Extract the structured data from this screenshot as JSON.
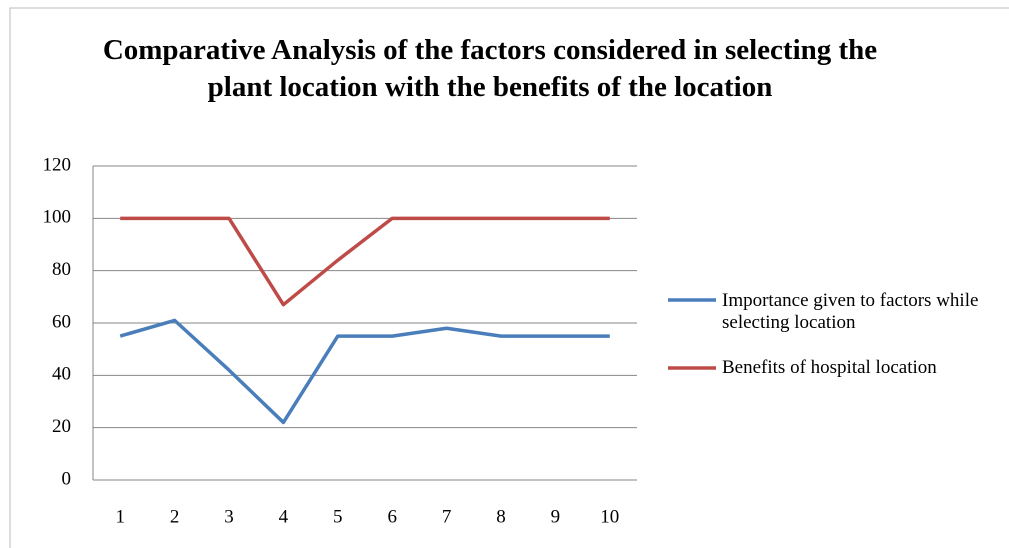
{
  "chart_data": {
    "type": "line",
    "title": "Comparative Analysis of the factors considered in selecting the plant location with the benefits of the location",
    "categories": [
      "1",
      "2",
      "3",
      "4",
      "5",
      "6",
      "7",
      "8",
      "9",
      "10"
    ],
    "series": [
      {
        "name": "Importance given to factors while  selecting location",
        "color": "#4a7ebb",
        "values": [
          55,
          61,
          42,
          22,
          55,
          55,
          58,
          55,
          55,
          55
        ]
      },
      {
        "name": "Benefits of hospital location",
        "color": "#be4b48",
        "values": [
          100,
          100,
          100,
          67,
          84,
          100,
          100,
          100,
          100,
          100
        ]
      }
    ],
    "ylim": [
      0,
      120
    ],
    "yticks": [
      0,
      20,
      40,
      60,
      80,
      100,
      120
    ],
    "grid": true,
    "legend": "right"
  }
}
